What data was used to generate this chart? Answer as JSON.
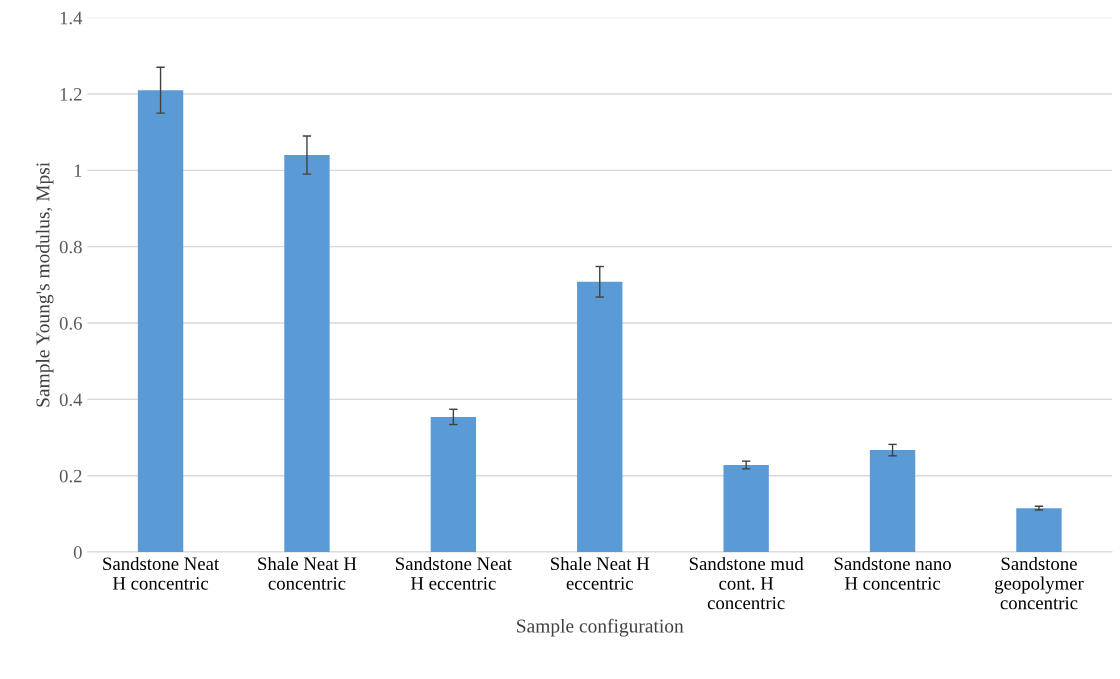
{
  "chart_data": {
    "type": "bar",
    "xlabel": "Sample configuration",
    "ylabel": "Sample Young's modulus, Mpsi",
    "categories": [
      "Sandstone Neat H concentric",
      "Shale Neat H concentric",
      "Sandstone Neat H eccentric",
      "Shale Neat H eccentric",
      "Sandstone mud cont. H concentric",
      "Sandstone nano H concentric",
      "Sandstone geopolymer concentric"
    ],
    "values": [
      1.21,
      1.04,
      0.354,
      0.708,
      0.228,
      0.267,
      0.115
    ],
    "errors": [
      0.06,
      0.05,
      0.02,
      0.04,
      0.01,
      0.015,
      0.005
    ],
    "color": "#5b9bd5",
    "ylim": [
      0,
      1.4
    ],
    "yticks": [
      0,
      0.2,
      0.4,
      0.6,
      0.8,
      1,
      1.2,
      1.4
    ],
    "grid": "y"
  }
}
